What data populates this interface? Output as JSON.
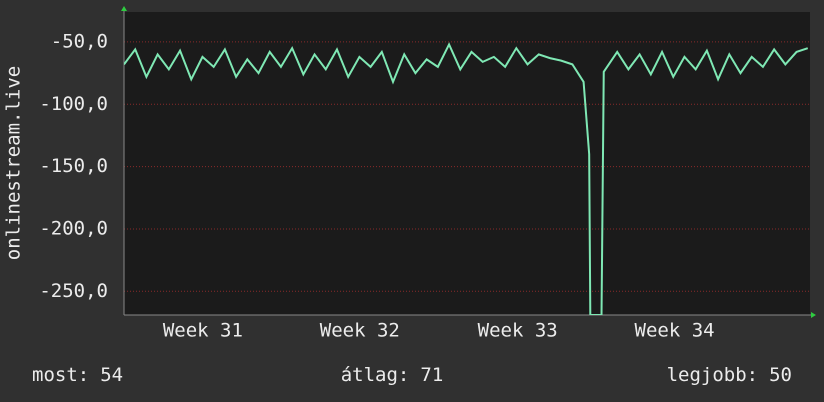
{
  "chart_data": {
    "type": "line",
    "y_label": "onlinestream.live",
    "x": [
      0,
      0.5,
      1,
      1.5,
      2,
      2.5,
      3,
      3.5,
      4,
      4.5,
      5,
      5.5,
      6,
      6.5,
      7,
      7.5,
      8,
      8.5,
      9,
      9.5,
      10,
      10.5,
      11,
      11.5,
      12,
      12.5,
      13,
      13.5,
      14,
      14.5,
      15,
      15.5,
      16,
      16.5,
      17,
      17.5,
      18,
      18.5,
      19,
      19.5,
      20,
      20.5,
      20.75,
      20.8,
      21.3,
      21.4,
      22,
      22.5,
      23,
      23.5,
      24,
      24.5,
      25,
      25.5,
      26,
      26.5,
      27,
      27.5,
      28,
      28.5,
      29,
      29.5,
      30,
      30.5
    ],
    "series": [
      {
        "color": "#7fe8b4",
        "values": [
          -68,
          -56,
          -78,
          -60,
          -72,
          -57,
          -80,
          -62,
          -70,
          -56,
          -78,
          -64,
          -75,
          -58,
          -70,
          -55,
          -76,
          -60,
          -72,
          -56,
          -78,
          -62,
          -70,
          -58,
          -82,
          -60,
          -75,
          -64,
          -70,
          -52,
          -72,
          -58,
          -66,
          -62,
          -70,
          -55,
          -68,
          -60,
          -63,
          -65,
          -68,
          -82,
          -140,
          -269,
          -269,
          -74,
          -58,
          -72,
          -60,
          -76,
          -58,
          -78,
          -62,
          -72,
          -57,
          -80,
          -60,
          -75,
          -62,
          -70,
          -56,
          -68,
          -58,
          -55
        ]
      }
    ],
    "xlim": [
      0,
      30.6
    ],
    "xticks": [
      {
        "value": 3.52,
        "label": "Week 31"
      },
      {
        "value": 10.52,
        "label": "Week 32"
      },
      {
        "value": 17.56,
        "label": "Week 33"
      },
      {
        "value": 24.56,
        "label": "Week 34"
      }
    ],
    "ylim": [
      -269,
      -26
    ],
    "yticks": [
      {
        "value": -50,
        "label": "-50,0"
      },
      {
        "value": -100,
        "label": "-100,0"
      },
      {
        "value": -150,
        "label": "-150,0"
      },
      {
        "value": -200,
        "label": "-200,0"
      },
      {
        "value": -250,
        "label": "-250,0"
      }
    ],
    "grid": true,
    "stats": [
      {
        "label": "most:",
        "value": 54
      },
      {
        "label": "átlag:",
        "value": 71
      },
      {
        "label": "legjobb:",
        "value": 50
      }
    ]
  }
}
